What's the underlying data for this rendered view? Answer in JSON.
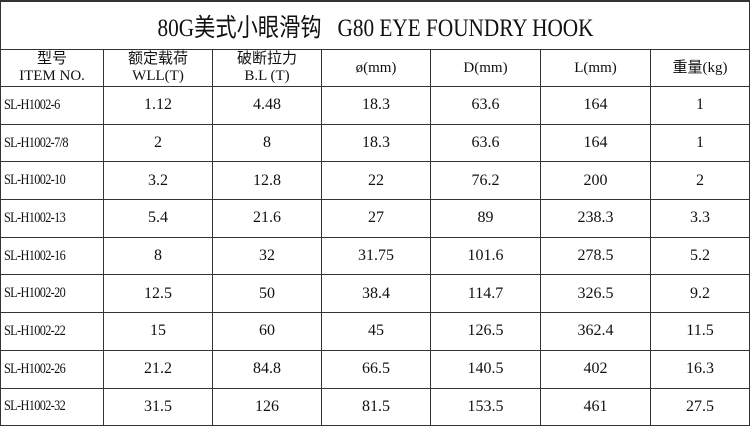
{
  "title": "80G美式小眼滑钩   G80 EYE FOUNDRY HOOK",
  "headers": [
    {
      "cn": "型号",
      "en": "ITEM NO."
    },
    {
      "cn": "额定载荷",
      "en": "WLL(T)"
    },
    {
      "cn": "破断拉力",
      "en": "B.L (T)"
    },
    {
      "cn": "",
      "en": "ø(mm)"
    },
    {
      "cn": "",
      "en": "D(mm)"
    },
    {
      "cn": "",
      "en": "L(mm)"
    },
    {
      "cn": "",
      "en": "重量(kg)"
    }
  ],
  "rows": [
    [
      "SL-H1002-6",
      "1.12",
      "4.48",
      "18.3",
      "63.6",
      "164",
      "1"
    ],
    [
      "SL-H1002-7/8",
      "2",
      "8",
      "18.3",
      "63.6",
      "164",
      "1"
    ],
    [
      "SL-H1002-10",
      "3.2",
      "12.8",
      "22",
      "76.2",
      "200",
      "2"
    ],
    [
      "SL-H1002-13",
      "5.4",
      "21.6",
      "27",
      "89",
      "238.3",
      "3.3"
    ],
    [
      "SL-H1002-16",
      "8",
      "32",
      "31.75",
      "101.6",
      "278.5",
      "5.2"
    ],
    [
      "SL-H1002-20",
      "12.5",
      "50",
      "38.4",
      "114.7",
      "326.5",
      "9.2"
    ],
    [
      "SL-H1002-22",
      "15",
      "60",
      "45",
      "126.5",
      "362.4",
      "11.5"
    ],
    [
      "SL-H1002-26",
      "21.2",
      "84.8",
      "66.5",
      "140.5",
      "402",
      "16.3"
    ],
    [
      "SL-H1002-32",
      "31.5",
      "126",
      "81.5",
      "153.5",
      "461",
      "27.5"
    ]
  ]
}
